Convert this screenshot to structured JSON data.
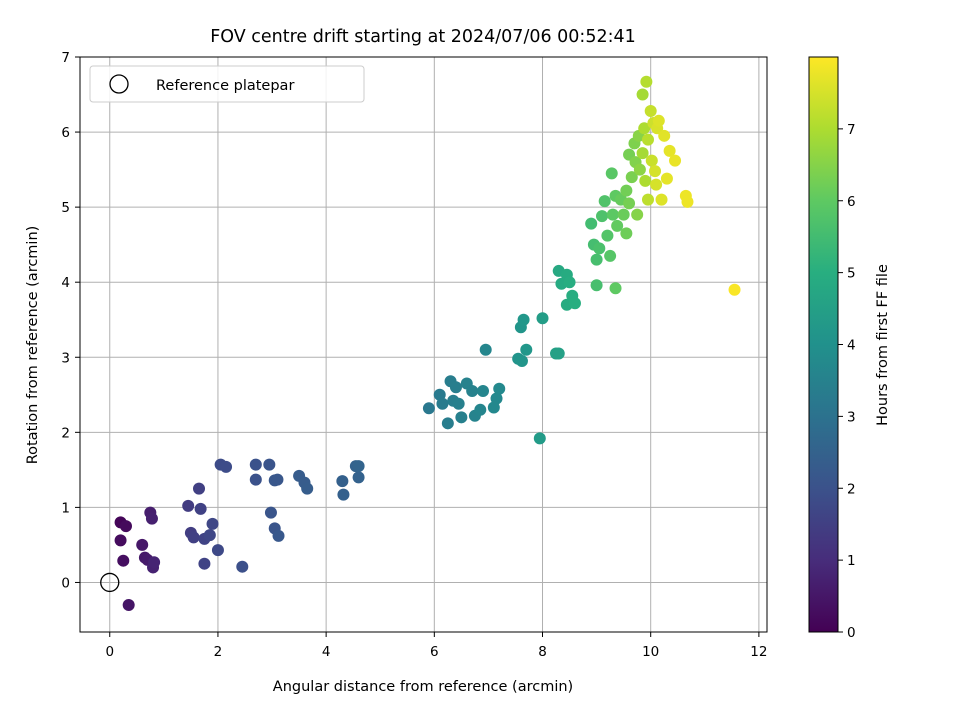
{
  "chart_data": {
    "type": "scatter",
    "title": "FOV centre drift starting at 2024/07/06 00:52:41",
    "xlabel": "Angular distance from reference (arcmin)",
    "ylabel": "Rotation from reference (arcmin)",
    "xlim": [
      -0.55,
      12.15
    ],
    "ylim": [
      -0.66,
      7.0
    ],
    "xticks": [
      0,
      2,
      4,
      6,
      8,
      10,
      12
    ],
    "yticks": [
      0,
      1,
      2,
      3,
      4,
      5,
      6,
      7
    ],
    "grid": true,
    "legend": {
      "placement": "upper-left",
      "entries": [
        "Reference platepar"
      ]
    },
    "reference_point": {
      "x": 0,
      "y": 0
    },
    "colorbar": {
      "label": "Hours from first FF file",
      "min": 0,
      "max": 8.0,
      "ticks": [
        0,
        1,
        2,
        3,
        4,
        5,
        6,
        7
      ],
      "colormap": "viridis"
    },
    "points": [
      {
        "x": 0.2,
        "y": 0.8,
        "t": 0.1
      },
      {
        "x": 0.3,
        "y": 0.75,
        "t": 0.2
      },
      {
        "x": 0.2,
        "y": 0.56,
        "t": 0.25
      },
      {
        "x": 0.25,
        "y": 0.29,
        "t": 0.3
      },
      {
        "x": 0.35,
        "y": -0.3,
        "t": 0.45
      },
      {
        "x": 0.6,
        "y": 0.5,
        "t": 0.5
      },
      {
        "x": 0.65,
        "y": 0.33,
        "t": 0.55
      },
      {
        "x": 0.7,
        "y": 0.3,
        "t": 0.6
      },
      {
        "x": 0.75,
        "y": 0.93,
        "t": 0.65
      },
      {
        "x": 0.78,
        "y": 0.85,
        "t": 0.7
      },
      {
        "x": 0.8,
        "y": 0.2,
        "t": 0.75
      },
      {
        "x": 0.82,
        "y": 0.27,
        "t": 0.8
      },
      {
        "x": 1.45,
        "y": 1.02,
        "t": 1.4
      },
      {
        "x": 1.5,
        "y": 0.66,
        "t": 1.45
      },
      {
        "x": 1.55,
        "y": 0.6,
        "t": 1.5
      },
      {
        "x": 1.65,
        "y": 1.25,
        "t": 1.5
      },
      {
        "x": 1.68,
        "y": 0.98,
        "t": 1.55
      },
      {
        "x": 1.75,
        "y": 0.58,
        "t": 1.6
      },
      {
        "x": 1.75,
        "y": 0.25,
        "t": 1.6
      },
      {
        "x": 1.85,
        "y": 0.63,
        "t": 1.7
      },
      {
        "x": 1.9,
        "y": 0.78,
        "t": 1.7
      },
      {
        "x": 2.0,
        "y": 0.43,
        "t": 1.75
      },
      {
        "x": 2.05,
        "y": 1.57,
        "t": 1.8
      },
      {
        "x": 2.15,
        "y": 1.54,
        "t": 1.85
      },
      {
        "x": 2.45,
        "y": 0.21,
        "t": 1.95
      },
      {
        "x": 2.7,
        "y": 1.57,
        "t": 2.0
      },
      {
        "x": 2.7,
        "y": 1.37,
        "t": 2.0
      },
      {
        "x": 2.95,
        "y": 1.57,
        "t": 2.05
      },
      {
        "x": 2.98,
        "y": 0.93,
        "t": 2.1
      },
      {
        "x": 3.05,
        "y": 0.72,
        "t": 2.1
      },
      {
        "x": 3.05,
        "y": 1.36,
        "t": 2.15
      },
      {
        "x": 3.1,
        "y": 1.37,
        "t": 2.15
      },
      {
        "x": 3.12,
        "y": 0.62,
        "t": 2.2
      },
      {
        "x": 3.5,
        "y": 1.42,
        "t": 2.3
      },
      {
        "x": 3.6,
        "y": 1.33,
        "t": 2.3
      },
      {
        "x": 3.65,
        "y": 1.25,
        "t": 2.35
      },
      {
        "x": 4.3,
        "y": 1.35,
        "t": 2.45
      },
      {
        "x": 4.32,
        "y": 1.17,
        "t": 2.45
      },
      {
        "x": 4.55,
        "y": 1.55,
        "t": 2.5
      },
      {
        "x": 4.6,
        "y": 1.4,
        "t": 2.5
      },
      {
        "x": 4.6,
        "y": 1.55,
        "t": 2.55
      },
      {
        "x": 5.9,
        "y": 2.32,
        "t": 3.2
      },
      {
        "x": 6.1,
        "y": 2.5,
        "t": 3.25
      },
      {
        "x": 6.15,
        "y": 2.38,
        "t": 3.3
      },
      {
        "x": 6.25,
        "y": 2.12,
        "t": 3.35
      },
      {
        "x": 6.3,
        "y": 2.68,
        "t": 3.35
      },
      {
        "x": 6.35,
        "y": 2.42,
        "t": 3.4
      },
      {
        "x": 6.4,
        "y": 2.6,
        "t": 3.4
      },
      {
        "x": 6.45,
        "y": 2.38,
        "t": 3.45
      },
      {
        "x": 6.5,
        "y": 2.2,
        "t": 3.45
      },
      {
        "x": 6.6,
        "y": 2.65,
        "t": 3.5
      },
      {
        "x": 6.7,
        "y": 2.55,
        "t": 3.5
      },
      {
        "x": 6.75,
        "y": 2.22,
        "t": 3.55
      },
      {
        "x": 6.85,
        "y": 2.3,
        "t": 3.6
      },
      {
        "x": 6.9,
        "y": 2.55,
        "t": 3.6
      },
      {
        "x": 6.95,
        "y": 3.1,
        "t": 3.65
      },
      {
        "x": 7.1,
        "y": 2.33,
        "t": 3.7
      },
      {
        "x": 7.15,
        "y": 2.45,
        "t": 3.7
      },
      {
        "x": 7.2,
        "y": 2.58,
        "t": 3.75
      },
      {
        "x": 7.55,
        "y": 2.98,
        "t": 4.1
      },
      {
        "x": 7.6,
        "y": 3.4,
        "t": 4.15
      },
      {
        "x": 7.62,
        "y": 2.95,
        "t": 4.15
      },
      {
        "x": 7.65,
        "y": 3.5,
        "t": 4.2
      },
      {
        "x": 7.7,
        "y": 3.1,
        "t": 4.2
      },
      {
        "x": 7.95,
        "y": 1.92,
        "t": 4.35
      },
      {
        "x": 8.0,
        "y": 3.52,
        "t": 4.4
      },
      {
        "x": 8.25,
        "y": 3.05,
        "t": 4.5
      },
      {
        "x": 8.3,
        "y": 3.05,
        "t": 4.5
      },
      {
        "x": 8.3,
        "y": 4.15,
        "t": 4.8
      },
      {
        "x": 8.35,
        "y": 3.98,
        "t": 4.85
      },
      {
        "x": 8.45,
        "y": 4.1,
        "t": 4.9
      },
      {
        "x": 8.45,
        "y": 3.7,
        "t": 4.9
      },
      {
        "x": 8.5,
        "y": 4.0,
        "t": 4.95
      },
      {
        "x": 8.55,
        "y": 3.82,
        "t": 4.95
      },
      {
        "x": 8.6,
        "y": 3.72,
        "t": 5.0
      },
      {
        "x": 8.9,
        "y": 4.78,
        "t": 5.5
      },
      {
        "x": 8.95,
        "y": 4.5,
        "t": 5.55
      },
      {
        "x": 9.0,
        "y": 4.3,
        "t": 5.6
      },
      {
        "x": 9.0,
        "y": 3.96,
        "t": 5.6
      },
      {
        "x": 9.05,
        "y": 4.45,
        "t": 5.65
      },
      {
        "x": 9.1,
        "y": 4.88,
        "t": 5.7
      },
      {
        "x": 9.15,
        "y": 5.08,
        "t": 5.75
      },
      {
        "x": 9.2,
        "y": 4.62,
        "t": 5.8
      },
      {
        "x": 9.25,
        "y": 4.35,
        "t": 5.85
      },
      {
        "x": 9.28,
        "y": 5.45,
        "t": 5.9
      },
      {
        "x": 9.3,
        "y": 4.9,
        "t": 5.95
      },
      {
        "x": 9.35,
        "y": 3.92,
        "t": 6.0
      },
      {
        "x": 9.35,
        "y": 5.15,
        "t": 6.0
      },
      {
        "x": 9.38,
        "y": 4.75,
        "t": 6.05
      },
      {
        "x": 9.45,
        "y": 5.1,
        "t": 6.1
      },
      {
        "x": 9.5,
        "y": 4.9,
        "t": 6.15
      },
      {
        "x": 9.55,
        "y": 4.65,
        "t": 6.2
      },
      {
        "x": 9.55,
        "y": 5.22,
        "t": 6.25
      },
      {
        "x": 9.6,
        "y": 5.05,
        "t": 6.3
      },
      {
        "x": 9.6,
        "y": 5.7,
        "t": 6.3
      },
      {
        "x": 9.65,
        "y": 5.4,
        "t": 6.35
      },
      {
        "x": 9.7,
        "y": 5.85,
        "t": 6.4
      },
      {
        "x": 9.72,
        "y": 5.6,
        "t": 6.45
      },
      {
        "x": 9.75,
        "y": 4.9,
        "t": 6.5
      },
      {
        "x": 9.78,
        "y": 5.95,
        "t": 6.55
      },
      {
        "x": 9.8,
        "y": 5.5,
        "t": 6.6
      },
      {
        "x": 9.85,
        "y": 6.5,
        "t": 6.9
      },
      {
        "x": 9.85,
        "y": 5.72,
        "t": 6.9
      },
      {
        "x": 9.88,
        "y": 6.05,
        "t": 7.0
      },
      {
        "x": 9.9,
        "y": 5.35,
        "t": 7.0
      },
      {
        "x": 9.92,
        "y": 6.67,
        "t": 7.1
      },
      {
        "x": 9.95,
        "y": 5.9,
        "t": 7.15
      },
      {
        "x": 9.95,
        "y": 5.1,
        "t": 7.2
      },
      {
        "x": 10.0,
        "y": 6.28,
        "t": 7.3
      },
      {
        "x": 10.02,
        "y": 5.62,
        "t": 7.35
      },
      {
        "x": 10.05,
        "y": 6.12,
        "t": 7.4
      },
      {
        "x": 10.08,
        "y": 5.48,
        "t": 7.5
      },
      {
        "x": 10.1,
        "y": 5.3,
        "t": 7.5
      },
      {
        "x": 10.12,
        "y": 6.05,
        "t": 7.55
      },
      {
        "x": 10.15,
        "y": 6.15,
        "t": 7.6
      },
      {
        "x": 10.2,
        "y": 5.1,
        "t": 7.6
      },
      {
        "x": 10.25,
        "y": 5.95,
        "t": 7.65
      },
      {
        "x": 10.3,
        "y": 5.38,
        "t": 7.7
      },
      {
        "x": 10.35,
        "y": 5.75,
        "t": 7.7
      },
      {
        "x": 10.45,
        "y": 5.62,
        "t": 7.75
      },
      {
        "x": 10.65,
        "y": 5.15,
        "t": 7.8
      },
      {
        "x": 10.68,
        "y": 5.07,
        "t": 7.8
      },
      {
        "x": 11.55,
        "y": 3.9,
        "t": 7.95
      }
    ]
  }
}
